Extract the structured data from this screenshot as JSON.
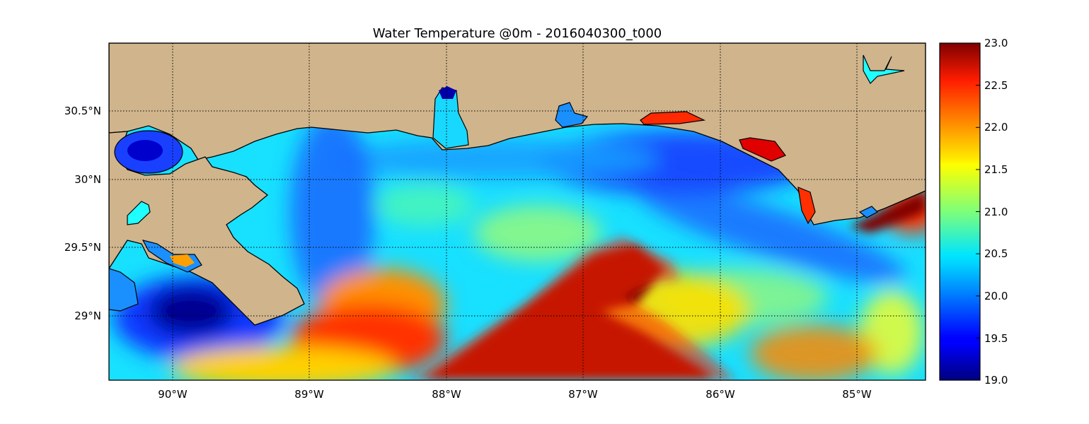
{
  "title": "Water Temperature @0m - 2016040300_t000",
  "map": {
    "x_ticks": [
      "90°W",
      "89°W",
      "88°W",
      "87°W",
      "86°W",
      "85°W"
    ],
    "y_ticks": [
      "30.5°N",
      "30°N",
      "29.5°N",
      "29°N"
    ],
    "land_color": "#d0b48c",
    "colormap": "jet"
  },
  "chart_data": {
    "type": "heatmap",
    "title": "Water Temperature @0m - 2016040300_t000",
    "x_range_deg_lon": [
      -90.47,
      -84.5
    ],
    "y_range_deg_lat": [
      28.53,
      31.0
    ],
    "x_ticks_deg": [
      -90,
      -89,
      -88,
      -87,
      -86,
      -85
    ],
    "x_tick_labels": [
      "90°W",
      "89°W",
      "88°W",
      "87°W",
      "86°W",
      "85°W"
    ],
    "y_ticks_deg": [
      30.5,
      30.0,
      29.5,
      29.0
    ],
    "y_tick_labels": [
      "30.5°N",
      "30°N",
      "29.5°N",
      "29°N"
    ],
    "grid": true,
    "colorbar": {
      "min": 19.0,
      "max": 23.0,
      "ticks": [
        "23.0",
        "22.5",
        "22.0",
        "21.5",
        "21.0",
        "20.5",
        "20.0",
        "19.5",
        "19.0"
      ],
      "colormap": "jet",
      "placement": "right"
    }
  }
}
